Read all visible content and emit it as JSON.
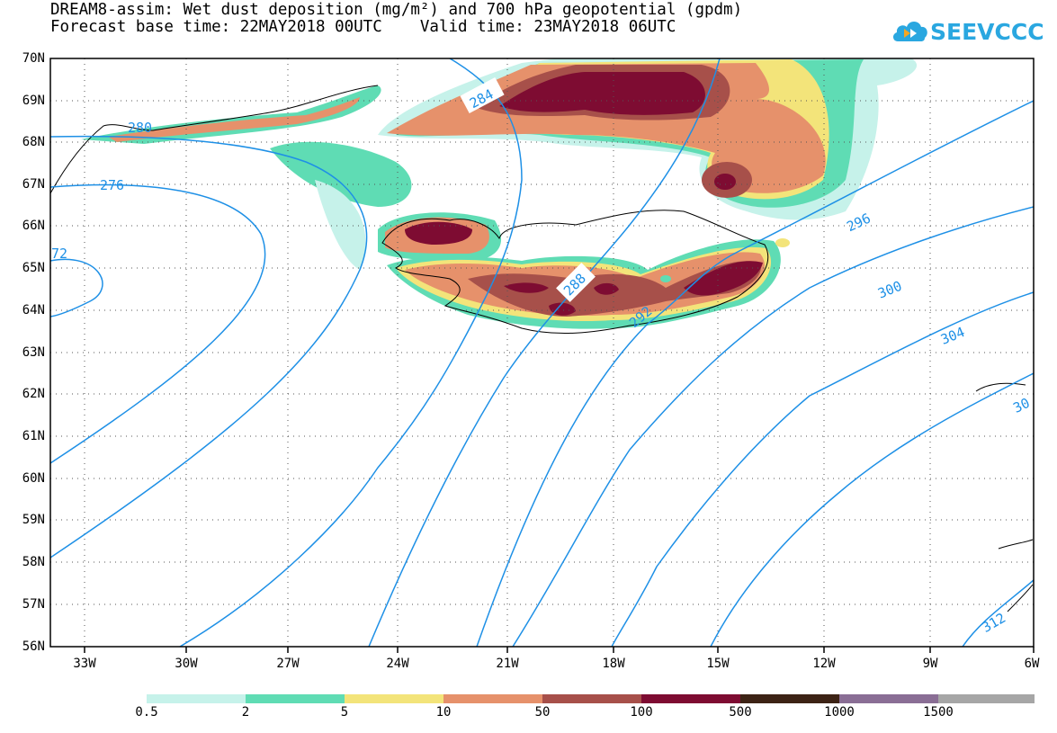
{
  "header": {
    "title_line1": "DREAM8-assim: Wet dust deposition (mg/m²) and 700 hPa geopotential (gpdm)",
    "title_line2": "Forecast base time: 22MAY2018 00UTC    Valid time: 23MAY2018 06UTC"
  },
  "logo": {
    "text": "SEEVCCC",
    "icon": "cloud-icon",
    "color": "#2aa7e0"
  },
  "map": {
    "lat_labels": [
      "70N",
      "69N",
      "68N",
      "67N",
      "66N",
      "65N",
      "64N",
      "63N",
      "62N",
      "61N",
      "60N",
      "59N",
      "58N",
      "57N",
      "56N"
    ],
    "lon_labels": [
      "33W",
      "30W",
      "27W",
      "24W",
      "21W",
      "18W",
      "15W",
      "12W",
      "9W",
      "6W"
    ],
    "contour_color": "#1e90e6",
    "contour_labels": [
      "280",
      "276",
      "72",
      "284",
      "288",
      "292",
      "296",
      "300",
      "304",
      "30",
      "312"
    ]
  },
  "colorbar": {
    "colors": [
      "#c6f2ea",
      "#5fdcb4",
      "#f3e47a",
      "#e6916b",
      "#a7504a",
      "#7e0c32",
      "#3d2315",
      "#8a6e95",
      "#a6a6a6"
    ],
    "labels": [
      "0.5",
      "2",
      "5",
      "10",
      "50",
      "100",
      "500",
      "1000",
      "1500"
    ]
  }
}
